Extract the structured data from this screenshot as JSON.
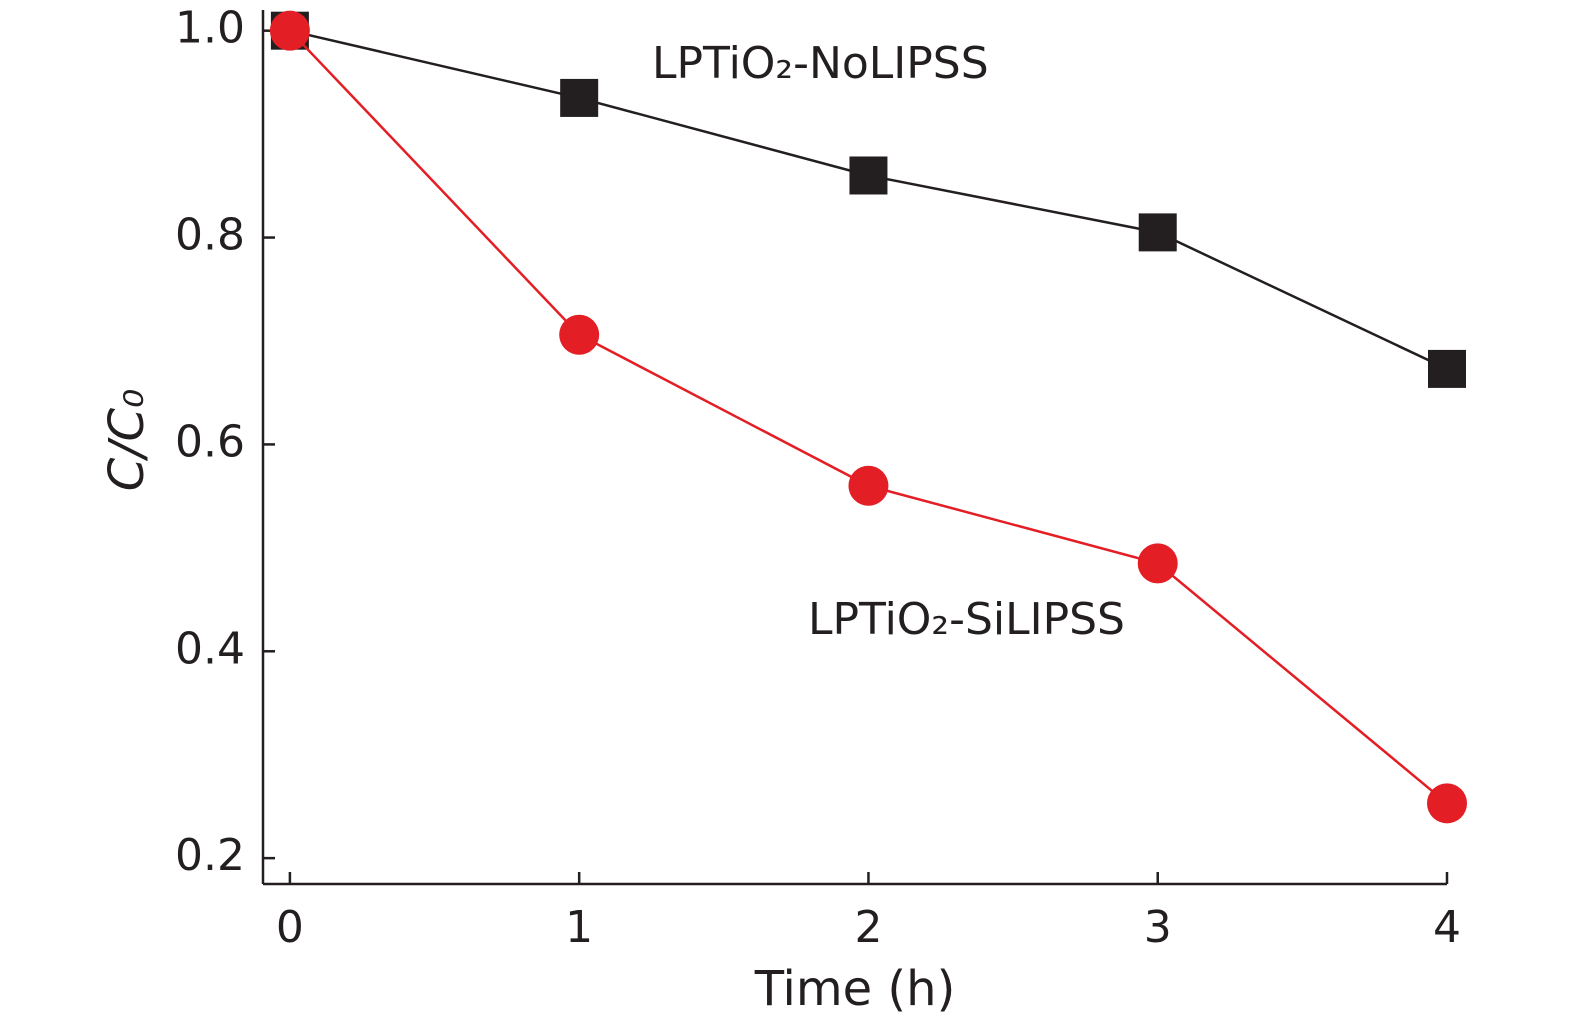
{
  "chart_data": {
    "type": "line",
    "x_label": "Time (h)",
    "y_label": "C/C₀",
    "x": [
      0,
      1,
      2,
      3,
      4
    ],
    "series": [
      {
        "name": "LPTiO₂-NoLIPSS",
        "color": "#231f20",
        "marker": "square",
        "values": [
          1.0,
          0.935,
          0.86,
          0.805,
          0.673
        ]
      },
      {
        "name": "LPTiO₂-SiLIPSS",
        "color": "#e31e24",
        "marker": "circle",
        "values": [
          1.0,
          0.706,
          0.56,
          0.485,
          0.253
        ]
      }
    ],
    "xlim": [
      -0.093,
      4
    ],
    "ylim": [
      0.175,
      1.02
    ],
    "xticks": [
      0,
      1,
      2,
      3,
      4
    ],
    "yticks": [
      0.2,
      0.4,
      0.6,
      0.8,
      {
        "value": 1,
        "label": "1.0"
      }
    ]
  }
}
